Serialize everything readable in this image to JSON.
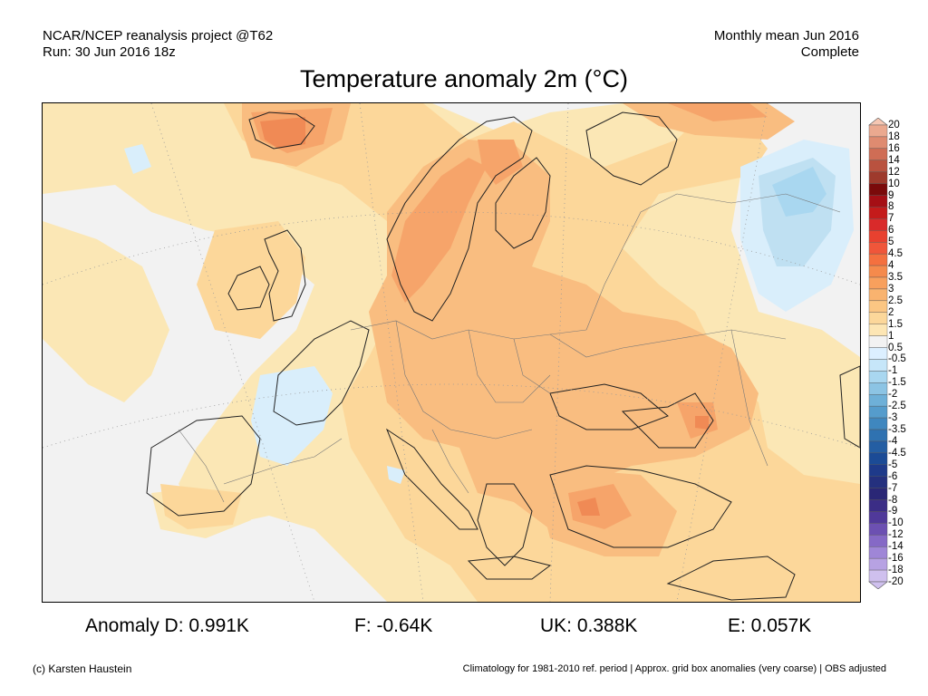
{
  "header": {
    "left_line1": "NCAR/NCEP reanalysis project @T62",
    "left_line2": "Run: 30 Jun 2016 18z",
    "right_line1": "Monthly mean Jun 2016",
    "right_line2": "Complete"
  },
  "title": "Temperature anomaly 2m (°C)",
  "legend": {
    "labels": [
      "20",
      "18",
      "16",
      "14",
      "12",
      "10",
      "9",
      "8",
      "7",
      "6",
      "5",
      "4.5",
      "4",
      "3.5",
      "3",
      "2.5",
      "2",
      "1.5",
      "1",
      "0.5",
      "-0.5",
      "-1",
      "-1.5",
      "-2",
      "-2.5",
      "-3",
      "-3.5",
      "-4",
      "-4.5",
      "-5",
      "-6",
      "-7",
      "-8",
      "-9",
      "-10",
      "-12",
      "-14",
      "-16",
      "-18",
      "-20"
    ],
    "colors": [
      "#f6c7b3",
      "#eba98f",
      "#df8b70",
      "#cf6d55",
      "#b9523f",
      "#9e3a2c",
      "#7a0a0a",
      "#a50f15",
      "#c41b1b",
      "#d92a2a",
      "#e8412f",
      "#f0563a",
      "#f4703f",
      "#f58a4c",
      "#f8a05d",
      "#f9b36f",
      "#fbc683",
      "#fcd79a",
      "#fde6b4",
      "#f2f2f2",
      "#dcefff",
      "#c6e6f9",
      "#a9d7f0",
      "#8cc4e4",
      "#6eb0d8",
      "#559ccc",
      "#3f87bf",
      "#2f72b1",
      "#245ea3",
      "#1b4b96",
      "#1e3a8a",
      "#24307e",
      "#2a2776",
      "#3b2d86",
      "#50399a",
      "#6c50b2",
      "#8569c6",
      "#9f86d7",
      "#b7a2e3",
      "#cfc0ee"
    ]
  },
  "stats": {
    "d": "Anomaly D: 0.991K",
    "f": "F: -0.64K",
    "uk": "UK: 0.388K",
    "e": "E: 0.057K"
  },
  "footer": {
    "left": "(c) Karsten Haustein",
    "right": "Climatology for 1981-2010 ref. period | Approx. grid box anomalies (very coarse) | OBS adjusted"
  },
  "colors": {
    "background": "#f2f2f2",
    "anomaly_0_5_1": "#fbe7b5",
    "anomaly_1_1_5": "#fcd79a",
    "anomaly_1_5_2": "#f9bd80",
    "anomaly_2_2_5": "#f6a46a",
    "anomaly_2_5_3": "#f08a55",
    "anomaly_neg_0_5": "#d9eefb",
    "anomaly_neg_1": "#bfe0f2"
  }
}
